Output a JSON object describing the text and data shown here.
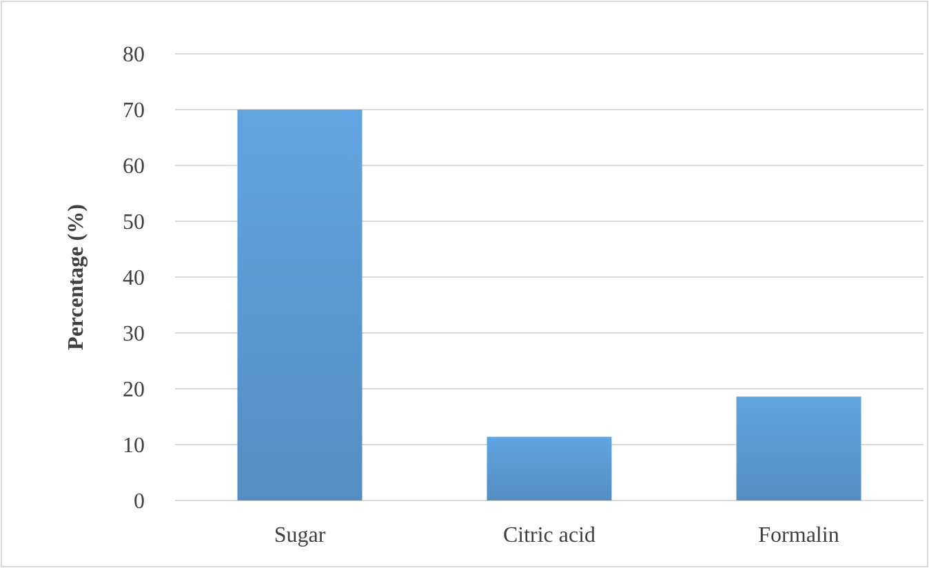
{
  "chart_data": {
    "type": "bar",
    "ylabel": "Percentage (%)",
    "categories": [
      "Sugar",
      "Citric acid",
      "Formalin"
    ],
    "values": [
      70,
      11.4,
      18.6
    ],
    "color": "#5b9bd5",
    "ylim": [
      0,
      80
    ],
    "yticks": [
      0,
      10,
      20,
      30,
      40,
      50,
      60,
      70,
      80
    ],
    "grid": "y"
  }
}
